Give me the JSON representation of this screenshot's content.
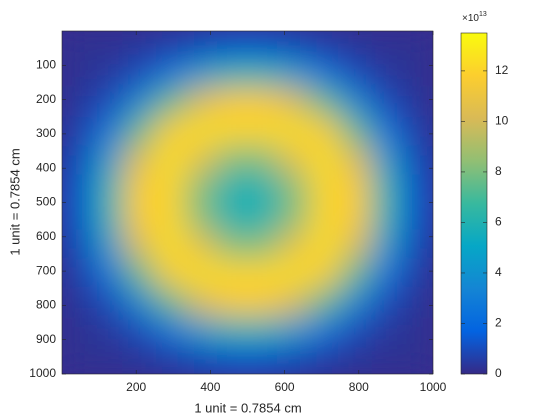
{
  "chart_data": {
    "type": "heatmap",
    "xlabel": "1 unit = 0.7854 cm",
    "ylabel": "1 unit = 0.7854 cm",
    "xlim": [
      0,
      1000
    ],
    "ylim": [
      0,
      1000
    ],
    "y_reversed": true,
    "xticks": [
      200,
      400,
      600,
      800,
      1000
    ],
    "yticks": [
      100,
      200,
      300,
      400,
      500,
      600,
      700,
      800,
      900,
      1000
    ],
    "clim": [
      0,
      13.5
    ],
    "cticks": [
      0,
      2,
      4,
      6,
      8,
      10,
      12
    ],
    "colorbar_exponent": {
      "base": "×10",
      "power": "13"
    },
    "colormap": "parula",
    "z": [
      [
        0.2,
        0.2,
        0.3,
        0.6,
        1.0,
        1.3,
        1.3,
        1.0,
        0.6,
        0.3,
        0.2,
        0.2
      ],
      [
        0.2,
        0.4,
        1.0,
        2.5,
        4.4,
        5.8,
        5.8,
        4.4,
        2.5,
        1.0,
        0.4,
        0.2
      ],
      [
        0.3,
        1.0,
        3.4,
        7.4,
        10.2,
        11.6,
        11.6,
        10.2,
        7.4,
        3.4,
        1.0,
        0.3
      ],
      [
        0.6,
        2.5,
        7.4,
        11.6,
        12.4,
        12.1,
        12.1,
        12.4,
        11.6,
        7.4,
        2.5,
        0.6
      ],
      [
        1.0,
        4.4,
        10.2,
        12.4,
        10.6,
        8.1,
        8.1,
        10.6,
        12.4,
        10.2,
        4.4,
        1.0
      ],
      [
        1.3,
        5.8,
        11.6,
        12.1,
        8.1,
        5.9,
        5.9,
        8.1,
        12.1,
        11.6,
        5.8,
        1.3
      ],
      [
        1.3,
        5.8,
        11.6,
        12.1,
        8.1,
        5.9,
        5.9,
        8.1,
        12.1,
        11.6,
        5.8,
        1.3
      ],
      [
        1.0,
        4.4,
        10.2,
        12.4,
        10.6,
        8.1,
        8.1,
        10.6,
        12.4,
        10.2,
        4.4,
        1.0
      ],
      [
        0.6,
        2.5,
        7.4,
        11.6,
        12.4,
        12.1,
        12.1,
        12.4,
        11.6,
        7.4,
        2.5,
        0.6
      ],
      [
        0.3,
        1.0,
        3.4,
        7.4,
        10.2,
        11.6,
        11.6,
        10.2,
        7.4,
        3.4,
        1.0,
        0.3
      ],
      [
        0.2,
        0.4,
        1.0,
        2.5,
        4.4,
        5.8,
        5.8,
        4.4,
        2.5,
        1.0,
        0.4,
        0.2
      ],
      [
        0.2,
        0.2,
        0.3,
        0.6,
        1.0,
        1.3,
        1.3,
        1.0,
        0.6,
        0.3,
        0.2,
        0.2
      ]
    ]
  }
}
